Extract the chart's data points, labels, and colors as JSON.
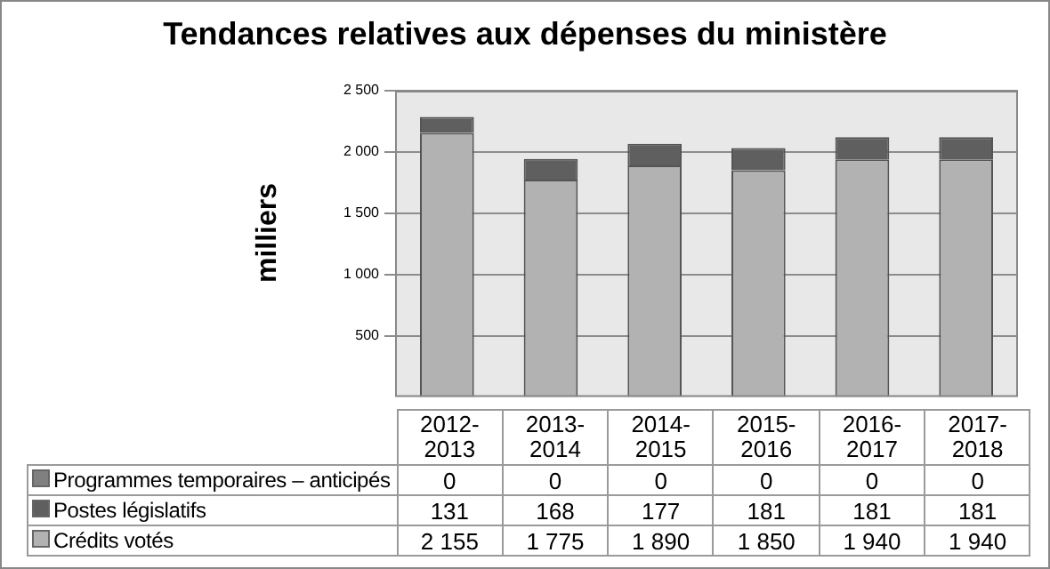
{
  "chart_data": {
    "type": "bar",
    "title": "Tendances relatives aux dépenses du ministère",
    "ylabel": "milliers",
    "categories": [
      "2012-2013",
      "2013-2014",
      "2014-2015",
      "2015-2016",
      "2016-2017",
      "2017-2018"
    ],
    "stacked": true,
    "series": [
      {
        "name": "Crédits votés",
        "color": "#b2b2b2",
        "values": [
          2155,
          1775,
          1890,
          1850,
          1940,
          1940
        ],
        "value_labels": [
          "2 155",
          "1 775",
          "1 890",
          "1 850",
          "1 940",
          "1 940"
        ]
      },
      {
        "name": "Postes législatifs",
        "color": "#5f5f5f",
        "values": [
          131,
          168,
          177,
          181,
          181,
          181
        ],
        "value_labels": [
          "131",
          "168",
          "177",
          "181",
          "181",
          "181"
        ]
      },
      {
        "name": "Programmes temporaires – anticipés",
        "color": "#808080",
        "values": [
          0,
          0,
          0,
          0,
          0,
          0
        ],
        "value_labels": [
          "0",
          "0",
          "0",
          "0",
          "0",
          "0"
        ]
      }
    ],
    "ylim": [
      0,
      2500
    ],
    "yticks": [
      500,
      {
        "value": 1000,
        "label": "1 000"
      },
      {
        "value": 1500,
        "label": "1 500"
      },
      {
        "value": 2000,
        "label": "2 000"
      },
      {
        "value": 2500,
        "label": "2 500"
      }
    ],
    "grid": "y",
    "legend": "bottom"
  }
}
